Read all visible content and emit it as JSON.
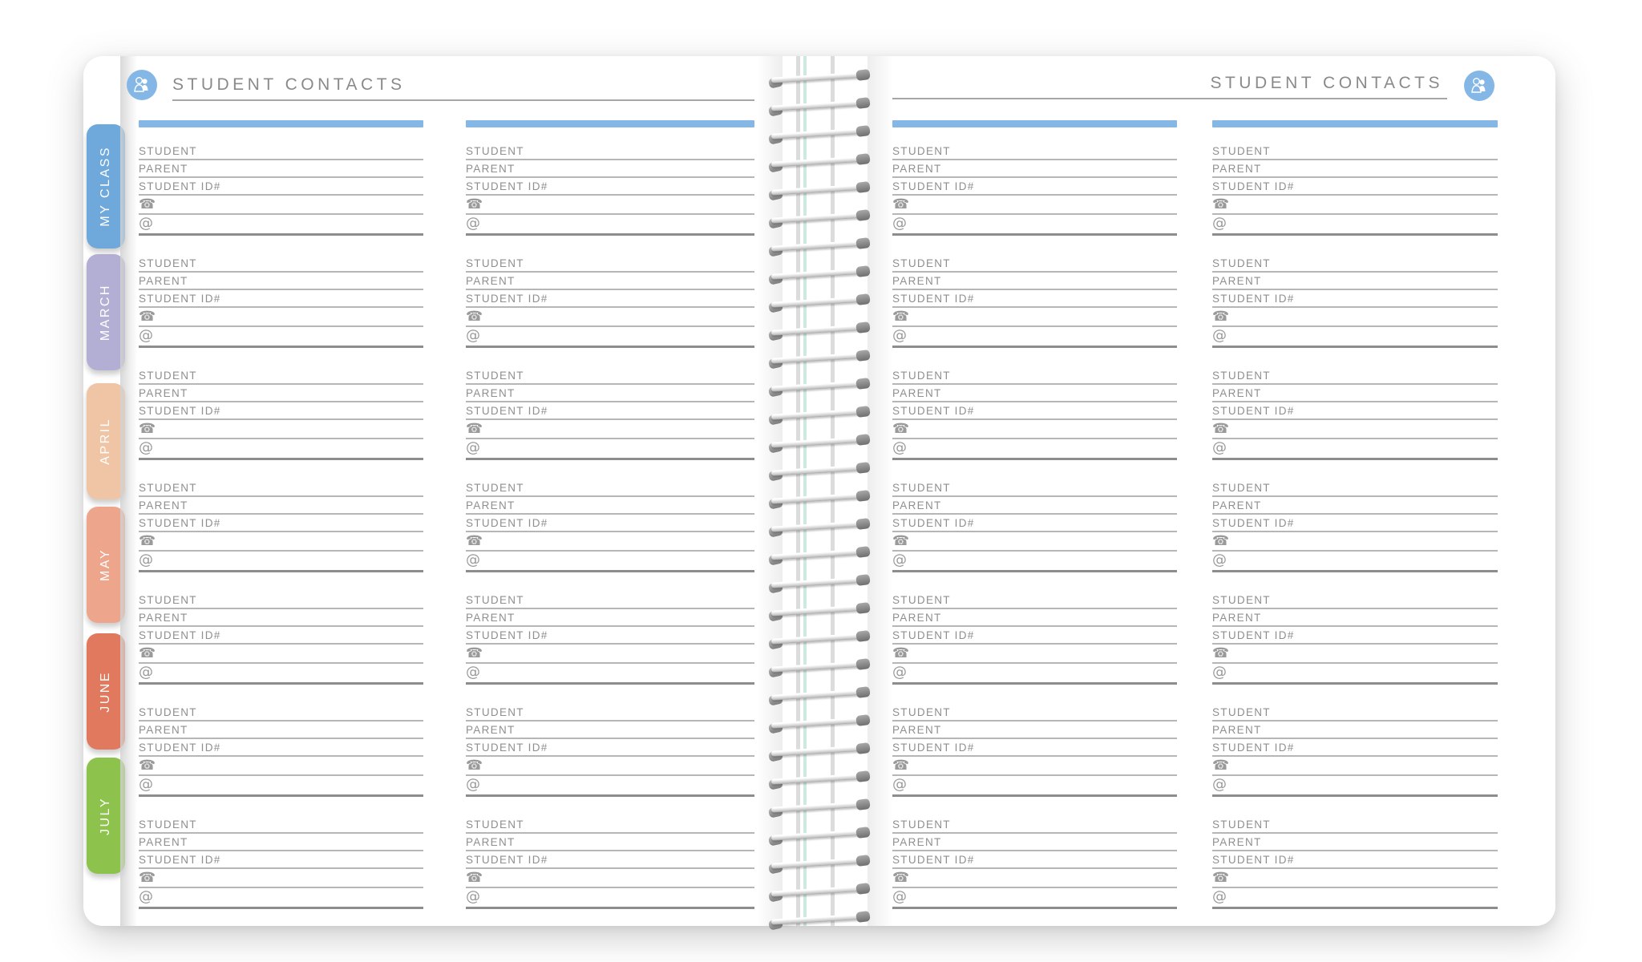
{
  "headers": {
    "left": {
      "title": "STUDENT CONTACTS"
    },
    "right": {
      "title": "STUDENT CONTACTS"
    }
  },
  "contact_block": {
    "fields": [
      "STUDENT",
      "PARENT",
      "STUDENT ID#"
    ],
    "phone_glyph": "☎",
    "email_glyph": "@"
  },
  "structure": {
    "columns_per_page": 2,
    "blocks_per_column": 7
  },
  "tabs": [
    {
      "label": "MY CLASS",
      "color": "#6fa9dc"
    },
    {
      "label": "MARCH",
      "color": "#b3afd4"
    },
    {
      "label": "APRIL",
      "color": "#f0c5a6"
    },
    {
      "label": "MAY",
      "color": "#eda58b"
    },
    {
      "label": "JUNE",
      "color": "#e0795d"
    },
    {
      "label": "JULY",
      "color": "#8dc24c"
    }
  ],
  "colors": {
    "accent_blue": "#84b7e5",
    "icon_blue": "#84b7e5",
    "label_gray": "#8f8f8f",
    "line_gray": "#b6b6b6",
    "line_dark": "#8d8d8d"
  }
}
